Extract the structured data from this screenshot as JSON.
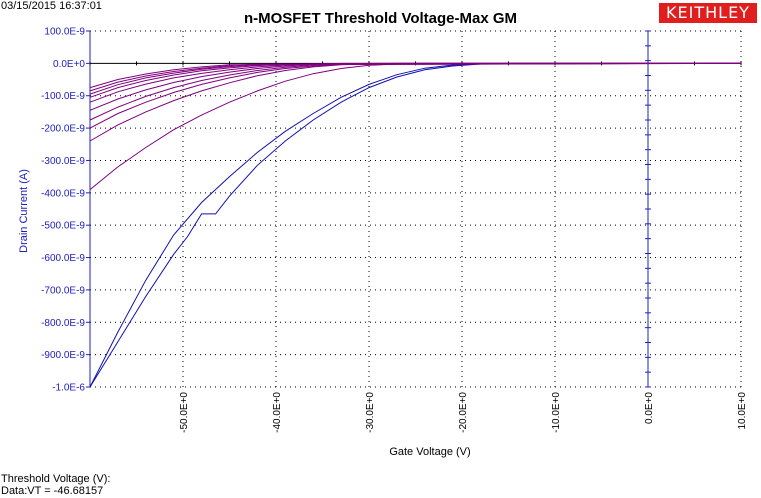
{
  "header": {
    "timestamp": "03/15/2015 16:37:01",
    "logo_text": "KEITHLEY"
  },
  "footer": {
    "line1": "Threshold Voltage (V):",
    "line2": "Data:VT = -46.68157"
  },
  "colors": {
    "axis_blue": "#2020c0",
    "sweep_purple": "#800080",
    "curve_blue": "#1010b0",
    "logo_red": "#e01e1e",
    "grid": "#000000"
  },
  "chart_data": {
    "type": "line",
    "title": "n-MOSFET Threshold Voltage-Max GM",
    "xlabel": "Gate Voltage (V)",
    "ylabel": "Drain Current (A)",
    "xlim": [
      -60,
      10
    ],
    "ylim": [
      -1e-06,
      1e-07
    ],
    "x_ticks": [
      -50,
      -40,
      -30,
      -20,
      -10,
      0,
      10
    ],
    "x_tick_labels": [
      "-50.0E+0",
      "-40.0E+0",
      "-30.0E+0",
      "-20.0E+0",
      "-10.0E+0",
      "0.0E+0",
      "10.0E+0"
    ],
    "y_ticks": [
      1e-07,
      0,
      -1e-07,
      -2e-07,
      -3e-07,
      -4e-07,
      -5e-07,
      -6e-07,
      -7e-07,
      -8e-07,
      -9e-07,
      -1e-06
    ],
    "y_tick_labels": [
      "100.0E-9",
      "0.0E+0",
      "-100.0E-9",
      "-200.0E-9",
      "-300.0E-9",
      "-400.0E-9",
      "-500.0E-9",
      "-600.0E-9",
      "-700.0E-9",
      "-800.0E-9",
      "-900.0E-9",
      "-1.0E-6"
    ],
    "grid": true,
    "series": [
      {
        "color": "#1010b0",
        "x": [
          -60,
          -57,
          -54,
          -51,
          -48,
          -45,
          -42,
          -39,
          -36,
          -33,
          -30,
          -27,
          -24,
          -21,
          -18,
          -15,
          -10,
          10
        ],
        "y": [
          -1e-06,
          -8.3e-07,
          -6.7e-07,
          -5.3e-07,
          -4.3e-07,
          -3.5e-07,
          -2.75e-07,
          -2.1e-07,
          -1.55e-07,
          -1.05e-07,
          -6.5e-08,
          -3.5e-08,
          -1.5e-08,
          -5e-09,
          -1e-09,
          0,
          0,
          0
        ]
      },
      {
        "color": "#1010b0",
        "x": [
          -60,
          -57,
          -54,
          -51,
          -49.5,
          -48,
          -46.5,
          -45,
          -42,
          -39,
          -36,
          -33,
          -30,
          -27,
          -24,
          -21,
          -18,
          -15,
          10
        ],
        "y": [
          -1e-06,
          -8.6e-07,
          -7.2e-07,
          -5.9e-07,
          -5.35e-07,
          -4.65e-07,
          -4.65e-07,
          -4.1e-07,
          -3.15e-07,
          -2.4e-07,
          -1.75e-07,
          -1.2e-07,
          -7.5e-08,
          -4.2e-08,
          -2e-08,
          -8e-09,
          -2e-09,
          0,
          0
        ]
      },
      {
        "color": "#800080",
        "x": [
          -60,
          -57,
          -54,
          -51,
          -48,
          -45,
          -42,
          -39,
          -36,
          -33,
          -30,
          -27,
          -24,
          -21,
          -18,
          10
        ],
        "y": [
          -3.9e-07,
          -3.2e-07,
          -2.6e-07,
          -2.05e-07,
          -1.6e-07,
          -1.2e-07,
          -8.5e-08,
          -5.5e-08,
          -3.2e-08,
          -1.6e-08,
          -6e-09,
          -2e-09,
          0,
          0,
          0,
          0
        ]
      },
      {
        "color": "#800080",
        "x": [
          -60,
          -57,
          -54,
          -51,
          -48,
          -45,
          -42,
          -39,
          -36,
          -33,
          -30,
          -27,
          -24,
          10
        ],
        "y": [
          -2.4e-07,
          -1.9e-07,
          -1.5e-07,
          -1.15e-07,
          -8.5e-08,
          -6e-08,
          -3.8e-08,
          -2.2e-08,
          -1.1e-08,
          -4e-09,
          -1e-09,
          0,
          0,
          0
        ]
      },
      {
        "color": "#800080",
        "x": [
          -60,
          -57,
          -54,
          -51,
          -48,
          -45,
          -42,
          -39,
          -36,
          -33,
          -30,
          -27,
          10
        ],
        "y": [
          -2e-07,
          -1.55e-07,
          -1.2e-07,
          -9e-08,
          -6.5e-08,
          -4.5e-08,
          -2.8e-08,
          -1.6e-08,
          -8e-09,
          -3e-09,
          -1e-09,
          0,
          0
        ]
      },
      {
        "color": "#800080",
        "x": [
          -60,
          -57,
          -54,
          -51,
          -48,
          -45,
          -42,
          -39,
          -36,
          -33,
          -30,
          10
        ],
        "y": [
          -1.75e-07,
          -1.35e-07,
          -1.02e-07,
          -7.5e-08,
          -5.3e-08,
          -3.6e-08,
          -2.2e-08,
          -1.2e-08,
          -5e-09,
          -2e-09,
          0,
          0
        ]
      },
      {
        "color": "#800080",
        "x": [
          -60,
          -57,
          -54,
          -51,
          -48,
          -45,
          -42,
          -39,
          -36,
          -33,
          10
        ],
        "y": [
          -1.45e-07,
          -1.1e-07,
          -8.2e-08,
          -5.9e-08,
          -4.1e-08,
          -2.7e-08,
          -1.6e-08,
          -8e-09,
          -3e-09,
          0,
          0
        ]
      },
      {
        "color": "#800080",
        "x": [
          -60,
          -57,
          -54,
          -51,
          -48,
          -45,
          -42,
          -39,
          -36,
          10
        ],
        "y": [
          -1.2e-07,
          -8.8e-08,
          -6.4e-08,
          -4.5e-08,
          -3.1e-08,
          -2e-08,
          -1.1e-08,
          -5e-09,
          -1e-09,
          0
        ]
      },
      {
        "color": "#800080",
        "x": [
          -60,
          -57,
          -54,
          -51,
          -48,
          -45,
          -42,
          -39,
          10
        ],
        "y": [
          -1.05e-07,
          -7.5e-08,
          -5.3e-08,
          -3.6e-08,
          -2.3e-08,
          -1.4e-08,
          -7e-09,
          -2e-09,
          0
        ]
      },
      {
        "color": "#800080",
        "x": [
          -60,
          -57,
          -54,
          -51,
          -48,
          -45,
          -42,
          10
        ],
        "y": [
          -9.5e-08,
          -6.6e-08,
          -4.5e-08,
          -3e-08,
          -1.8e-08,
          -1e-08,
          -4e-09,
          0
        ]
      },
      {
        "color": "#800080",
        "x": [
          -60,
          -57,
          -54,
          -51,
          -48,
          -45,
          -42,
          10
        ],
        "y": [
          -8.5e-08,
          -5.8e-08,
          -3.9e-08,
          -2.5e-08,
          -1.5e-08,
          -7e-09,
          -2e-09,
          0
        ]
      },
      {
        "color": "#800080",
        "x": [
          -60,
          -57,
          -54,
          -51,
          -48,
          -45,
          10
        ],
        "y": [
          -7.5e-08,
          -5e-08,
          -3.3e-08,
          -2e-08,
          -1.1e-08,
          -4e-09,
          0
        ]
      }
    ]
  }
}
